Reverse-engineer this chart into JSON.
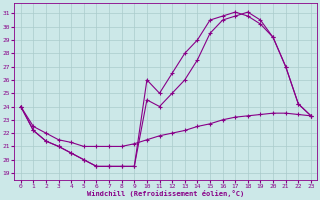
{
  "xlabel": "Windchill (Refroidissement éolien,°C)",
  "bg_color": "#cce8e8",
  "grid_color": "#aacccc",
  "line_color": "#880088",
  "xlim": [
    -0.5,
    23.5
  ],
  "ylim": [
    18.5,
    31.8
  ],
  "xticks": [
    0,
    1,
    2,
    3,
    4,
    5,
    6,
    7,
    8,
    9,
    10,
    11,
    12,
    13,
    14,
    15,
    16,
    17,
    18,
    19,
    20,
    21,
    22,
    23
  ],
  "yticks": [
    19,
    20,
    21,
    22,
    23,
    24,
    25,
    26,
    27,
    28,
    29,
    30,
    31
  ],
  "curve1_y": [
    24.0,
    22.2,
    21.4,
    21.0,
    20.5,
    20.0,
    19.5,
    19.5,
    19.5,
    19.5,
    26.0,
    25.0,
    26.5,
    28.0,
    29.0,
    30.5,
    30.8,
    31.1,
    30.8,
    30.2,
    29.2,
    27.0,
    24.2,
    23.3
  ],
  "curve2_y": [
    24.0,
    22.2,
    21.4,
    21.0,
    20.5,
    20.0,
    19.5,
    19.5,
    19.5,
    19.5,
    24.5,
    24.0,
    25.0,
    26.0,
    27.5,
    29.5,
    30.5,
    30.8,
    31.1,
    30.5,
    29.2,
    27.0,
    24.2,
    23.3
  ],
  "curve3_y": [
    24.0,
    22.5,
    22.0,
    21.5,
    21.3,
    21.0,
    21.0,
    21.0,
    21.0,
    21.2,
    21.5,
    21.8,
    22.0,
    22.2,
    22.5,
    22.7,
    23.0,
    23.2,
    23.3,
    23.4,
    23.5,
    23.5,
    23.4,
    23.3
  ]
}
